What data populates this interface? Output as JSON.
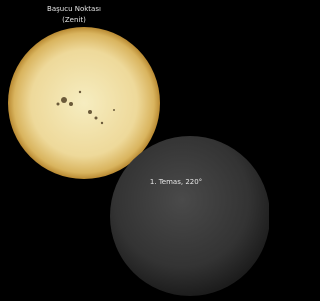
{
  "labels": {
    "zenith": [
      "Başucu Noktası",
      "(Zenit)"
    ],
    "contact": "1. Temas, 220°"
  }
}
